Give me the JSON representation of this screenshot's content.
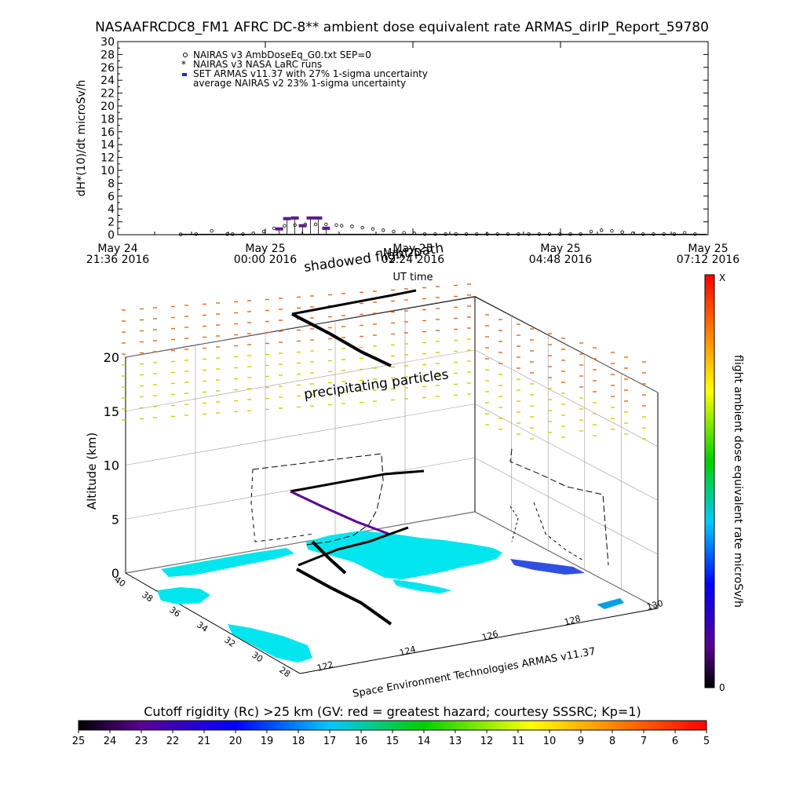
{
  "chart_data": [
    {
      "type": "scatter",
      "title": "NASAAFRCDC8_FM1 AFRC DC-8** ambient dose equivalent rate ARMAS_dirIP_Report_59780",
      "ylabel": "dH*(10)/dt microSv/h",
      "xlabel": "UT time",
      "ylim": [
        0,
        30
      ],
      "yticks": [
        "0",
        "2",
        "4",
        "6",
        "8",
        "10",
        "12",
        "14",
        "16",
        "18",
        "20",
        "22",
        "24",
        "26",
        "28",
        "30"
      ],
      "xticks": [
        {
          "date": "May 24",
          "time": "21:36 2016"
        },
        {
          "date": "May 25",
          "time": "00:00 2016"
        },
        {
          "date": "May 25",
          "time": "02:24 2016"
        },
        {
          "date": "May 25",
          "time": "04:48 2016"
        },
        {
          "date": "May 25",
          "time": "07:12 2016"
        }
      ],
      "legend": [
        "NAIRAS v3 AmbDoseEq_G0.txt SEP=0",
        "NAIRAS v3 NASA LaRC runs",
        "SET ARMAS v11.37 with 27% 1-sigma uncertainty",
        "average NAIRAS v2 23% 1-sigma uncertainty"
      ],
      "legend_placement": "top-left",
      "series": [
        {
          "name": "NAIRAS v3 AmbDoseEq_G0.txt SEP=0",
          "x_hours": [
            0.0,
            0.3,
            0.6,
            0.9,
            1.0,
            1.2,
            1.4,
            1.6,
            1.8,
            2.0,
            2.2,
            2.4,
            2.6,
            2.8,
            3.0,
            3.1,
            3.3,
            3.5,
            3.7,
            3.9,
            4.1,
            4.3,
            4.5,
            4.7,
            4.9,
            5.1,
            5.3,
            5.5,
            5.7,
            5.9,
            6.1,
            6.3,
            6.5,
            6.7,
            6.9,
            7.1,
            7.3,
            7.5,
            7.7,
            7.9,
            8.1,
            8.3,
            8.5,
            8.7,
            8.9,
            9.1,
            9.3,
            9.5,
            9.7,
            9.9
          ],
          "values": [
            0.05,
            0.1,
            0.6,
            0.1,
            0.1,
            0.1,
            0.2,
            0.5,
            1.0,
            1.4,
            1.5,
            1.6,
            1.6,
            1.6,
            1.5,
            1.4,
            1.3,
            1.1,
            0.9,
            0.7,
            0.5,
            0.3,
            0.2,
            0.1,
            0.1,
            0.1,
            0.1,
            0.1,
            0.1,
            0.1,
            0.1,
            0.1,
            0.1,
            0.1,
            0.1,
            0.1,
            0.1,
            0.1,
            0.1,
            0.5,
            0.7,
            0.6,
            0.4,
            0.2,
            0.1,
            0.1,
            0.1,
            0.1,
            0.3,
            0.1
          ]
        },
        {
          "name": "SET ARMAS v11.37 with 27% 1-sigma uncertainty",
          "x_hours": [
            1.9,
            2.05,
            2.2,
            2.35,
            2.5,
            2.65,
            2.8
          ],
          "values": [
            0.9,
            2.5,
            2.6,
            1.4,
            2.6,
            2.6,
            1.0
          ]
        }
      ]
    },
    {
      "type": "3d-scatter",
      "title": "",
      "zlabel": "Altitude (km)",
      "zticks": [
        "0",
        "5",
        "10",
        "15",
        "20"
      ],
      "xticks_lon": [
        "122",
        "124",
        "126",
        "128",
        "130"
      ],
      "yticks_lat": [
        "28",
        "30",
        "32",
        "34",
        "36",
        "38",
        "40"
      ],
      "annotations": [
        "shadowed flight path",
        "May 25",
        "precipitating particles"
      ],
      "credit": "Space Environment Technologies ARMAS v11.37",
      "colorbar_label": "flight ambient dose equivalent rate microSv/h",
      "colorbar_range": [
        "0",
        "X"
      ],
      "colors": {
        "land": "#00e5ee",
        "track": "#000000",
        "particles_high": "#e46a1e",
        "particles_low": "#c8d400"
      }
    },
    {
      "type": "colorbar",
      "title": "Cutoff rigidity (Rc) >25 km (GV: red = greatest hazard; courtesy SSSRC; Kp=1)",
      "ticks": [
        "25",
        "24",
        "23",
        "22",
        "21",
        "20",
        "19",
        "18",
        "17",
        "16",
        "15",
        "14",
        "13",
        "12",
        "11",
        "10",
        "9",
        "8",
        "7",
        "6",
        "5"
      ]
    }
  ]
}
